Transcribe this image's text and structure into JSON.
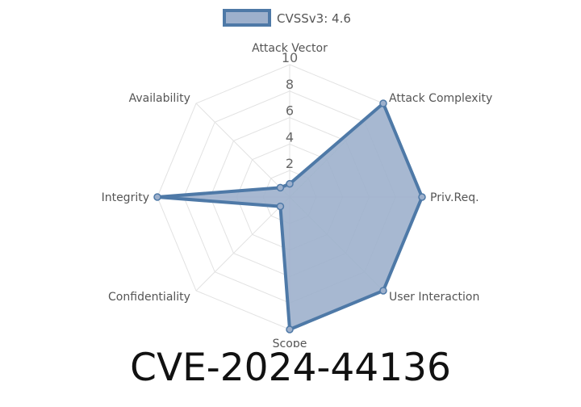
{
  "page": {
    "cve_id": "CVE-2024-44136"
  },
  "chart_data": {
    "type": "radar",
    "axes": [
      "Attack Vector",
      "Attack Complexity",
      "Priv.Req.",
      "User Interaction",
      "Scope",
      "Confidentiality",
      "Integrity",
      "Availability"
    ],
    "series": [
      {
        "name": "CVSSv3: 4.6",
        "values": [
          1,
          10,
          10,
          10,
          10,
          1,
          10,
          1
        ],
        "color": "#4e79a7",
        "fill": "#9db0cc"
      }
    ],
    "r_range": [
      0,
      10
    ],
    "ticks": [
      "2",
      "4",
      "6",
      "8",
      "10"
    ],
    "tick_values": [
      2,
      4,
      6,
      8,
      10
    ],
    "grid": true,
    "legend_position": "top-center"
  }
}
